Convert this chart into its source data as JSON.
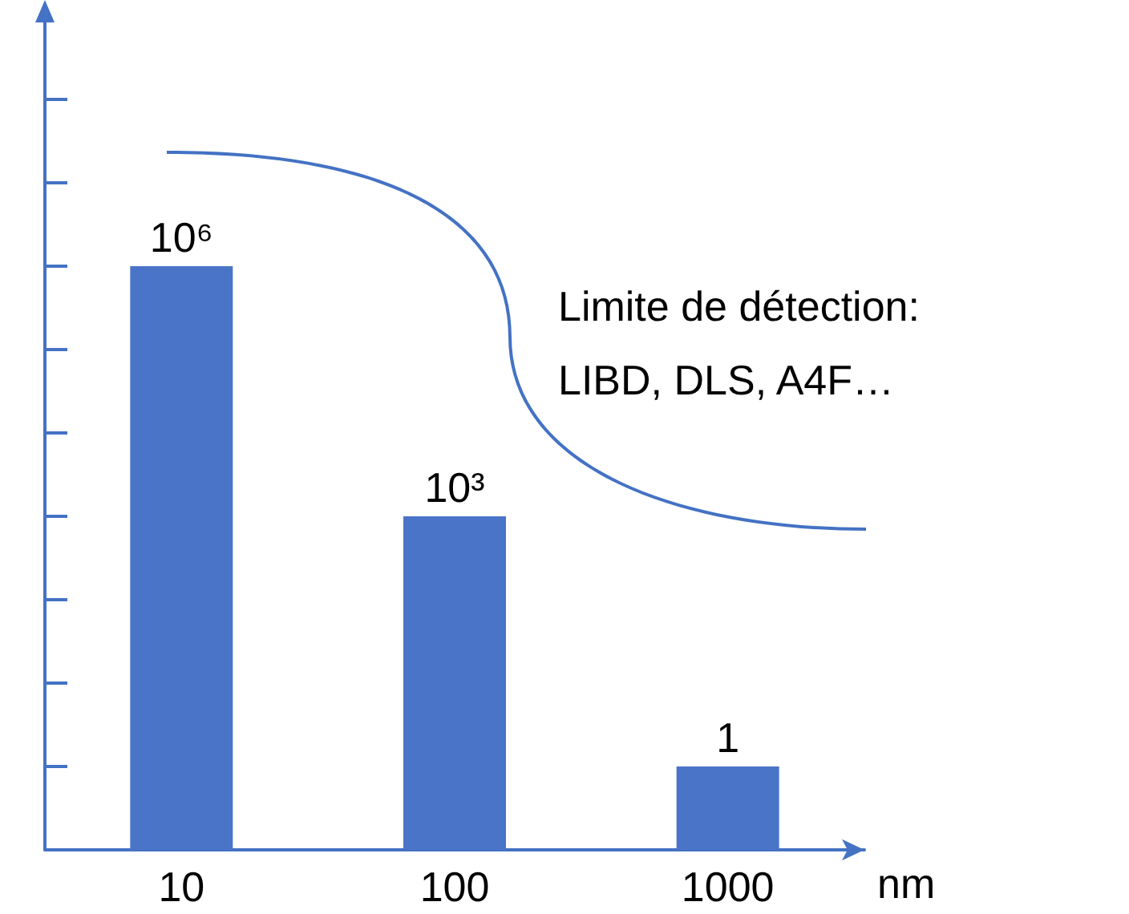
{
  "chart_data": {
    "type": "bar",
    "categories": [
      "10",
      "100",
      "1000"
    ],
    "xlabel": "nm",
    "values": [
      1000000,
      1000,
      1
    ],
    "value_labels": [
      "10⁶",
      "10³",
      "1"
    ],
    "color": "#4a74c8",
    "log": true,
    "ylim": [
      0.1,
      1000000000
    ],
    "yticks": [
      {
        "value": 1,
        "label": null
      },
      {
        "value": 10,
        "label": null
      },
      {
        "value": 100,
        "label": null
      },
      {
        "value": 1000,
        "label": null
      },
      {
        "value": 10000,
        "label": null
      },
      {
        "value": 100000,
        "label": null
      },
      {
        "value": 1000000,
        "label": null
      },
      {
        "value": 10000000,
        "label": null
      },
      {
        "value": 100000000,
        "label": null
      }
    ],
    "tick_labels": "x",
    "grid": false,
    "annotations": [
      "Limite de détection:\nLIBD, DLS, A4F…"
    ]
  }
}
